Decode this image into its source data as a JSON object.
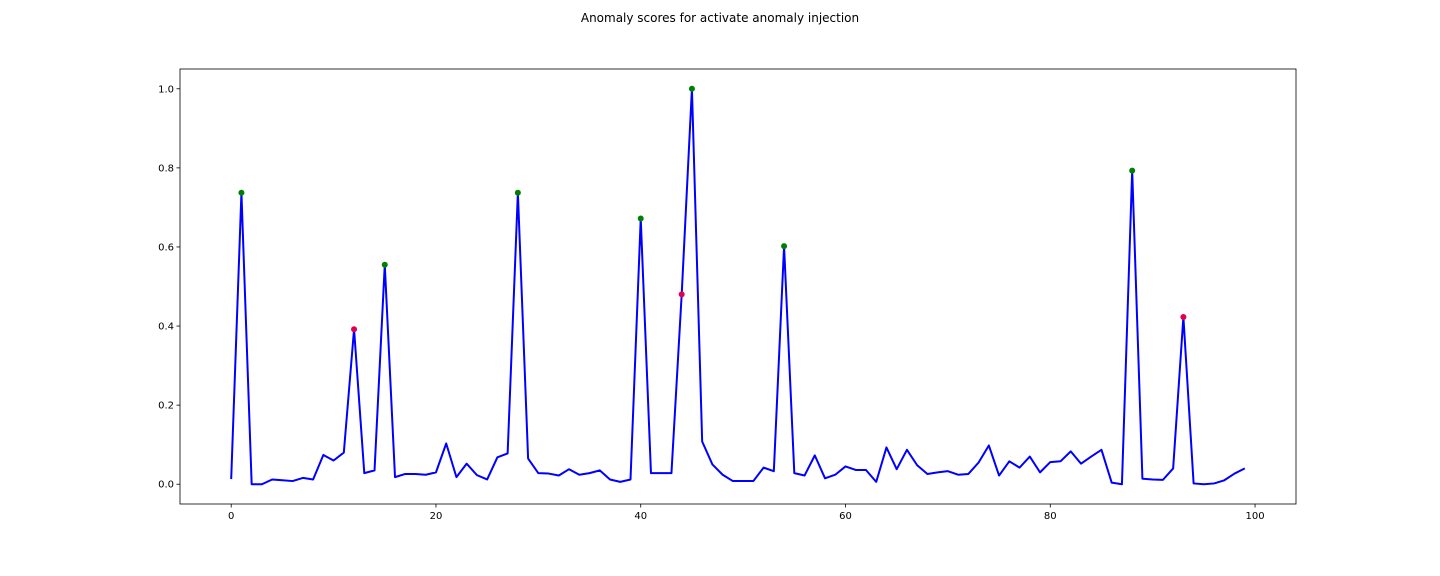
{
  "chart_data": {
    "type": "line",
    "title": "Anomaly scores for activate anomaly injection",
    "xlabel": "",
    "ylabel": "",
    "xlim": [
      -5,
      104
    ],
    "ylim": [
      -0.05,
      1.05
    ],
    "xticks": [
      0,
      20,
      40,
      60,
      80,
      100
    ],
    "yticks": [
      0.0,
      0.2,
      0.4,
      0.6,
      0.8,
      1.0
    ],
    "xtick_labels": [
      "0",
      "20",
      "40",
      "60",
      "80",
      "100"
    ],
    "ytick_labels": [
      "0.0",
      "0.2",
      "0.4",
      "0.6",
      "0.8",
      "1.0"
    ],
    "grid": false,
    "legend": "none",
    "series": [
      {
        "color": "#0000ff",
        "x": [
          0,
          1,
          2,
          3,
          4,
          5,
          6,
          7,
          8,
          9,
          10,
          11,
          12,
          13,
          14,
          15,
          16,
          17,
          18,
          19,
          20,
          21,
          22,
          23,
          24,
          25,
          26,
          27,
          28,
          29,
          30,
          31,
          32,
          33,
          34,
          35,
          36,
          37,
          38,
          39,
          40,
          41,
          42,
          43,
          44,
          45,
          46,
          47,
          48,
          49,
          50,
          51,
          52,
          53,
          54,
          55,
          56,
          57,
          58,
          59,
          60,
          61,
          62,
          63,
          64,
          65,
          66,
          67,
          68,
          69,
          70,
          71,
          72,
          73,
          74,
          75,
          76,
          77,
          78,
          79,
          80,
          81,
          82,
          83,
          84,
          85,
          86,
          87,
          88,
          89,
          90,
          91,
          92,
          93,
          94,
          95,
          96,
          97,
          98,
          99
        ],
        "y": [
          0.013,
          0.737,
          0.0,
          0.0,
          0.012,
          0.01,
          0.008,
          0.016,
          0.012,
          0.074,
          0.06,
          0.08,
          0.392,
          0.028,
          0.035,
          0.555,
          0.018,
          0.026,
          0.026,
          0.024,
          0.03,
          0.103,
          0.018,
          0.052,
          0.023,
          0.012,
          0.068,
          0.078,
          0.737,
          0.065,
          0.028,
          0.027,
          0.022,
          0.038,
          0.024,
          0.028,
          0.035,
          0.012,
          0.006,
          0.012,
          0.672,
          0.028,
          0.028,
          0.028,
          0.48,
          1.0,
          0.108,
          0.05,
          0.024,
          0.008,
          0.008,
          0.008,
          0.042,
          0.033,
          0.602,
          0.028,
          0.022,
          0.073,
          0.015,
          0.024,
          0.045,
          0.036,
          0.036,
          0.006,
          0.093,
          0.038,
          0.087,
          0.048,
          0.026,
          0.03,
          0.033,
          0.024,
          0.026,
          0.055,
          0.098,
          0.022,
          0.058,
          0.042,
          0.07,
          0.03,
          0.056,
          0.058,
          0.083,
          0.052,
          0.07,
          0.087,
          0.004,
          0.0,
          0.793,
          0.014,
          0.012,
          0.011,
          0.04,
          0.423,
          0.002,
          0.0,
          0.002,
          0.01,
          0.027,
          0.04
        ]
      }
    ],
    "markers": [
      {
        "x": 1,
        "y": 0.737,
        "color": "#008000"
      },
      {
        "x": 12,
        "y": 0.392,
        "color": "#e0004d"
      },
      {
        "x": 15,
        "y": 0.555,
        "color": "#008000"
      },
      {
        "x": 28,
        "y": 0.737,
        "color": "#008000"
      },
      {
        "x": 40,
        "y": 0.672,
        "color": "#008000"
      },
      {
        "x": 44,
        "y": 0.48,
        "color": "#e0004d"
      },
      {
        "x": 45,
        "y": 1.0,
        "color": "#008000"
      },
      {
        "x": 54,
        "y": 0.602,
        "color": "#008000"
      },
      {
        "x": 88,
        "y": 0.793,
        "color": "#008000"
      },
      {
        "x": 93,
        "y": 0.423,
        "color": "#e0004d"
      }
    ]
  }
}
